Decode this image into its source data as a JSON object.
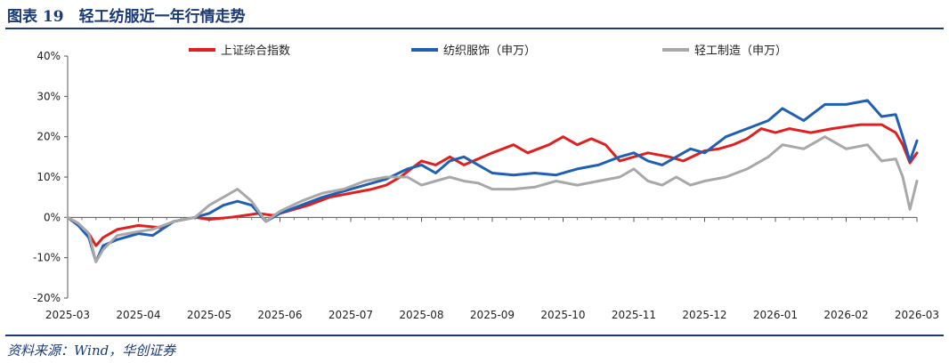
{
  "header": {
    "title": "图表 19　轻工纺服近一年行情走势"
  },
  "footer": {
    "source": "资料来源：Wind，华创证券"
  },
  "colors": {
    "title": "#1a3a7a",
    "series": [
      "#e02020",
      "#1f5fb4",
      "#a8a8a8"
    ]
  },
  "chart_data": {
    "type": "line",
    "title": "",
    "xlabel": "",
    "ylabel": "",
    "x_ticks": [
      "2025-03",
      "2025-04",
      "2025-05",
      "2025-06",
      "2025-07",
      "2025-08",
      "2025-09",
      "2025-10",
      "2025-11",
      "2025-12",
      "2026-01",
      "2026-02",
      "2026-03"
    ],
    "y_ticks": [
      "-20%",
      "-10%",
      "0%",
      "10%",
      "20%",
      "30%",
      "40%"
    ],
    "ylim": [
      -20,
      40
    ],
    "legend_position": "top",
    "grid": false,
    "series": [
      {
        "name": "上证综合指数",
        "color": "#e02020",
        "points": [
          [
            0,
            0
          ],
          [
            0.15,
            -1.5
          ],
          [
            0.3,
            -4
          ],
          [
            0.4,
            -7
          ],
          [
            0.5,
            -5
          ],
          [
            0.7,
            -3
          ],
          [
            1.0,
            -2
          ],
          [
            1.3,
            -2.5
          ],
          [
            1.5,
            -1
          ],
          [
            1.8,
            0
          ],
          [
            2.0,
            -0.5
          ],
          [
            2.3,
            0
          ],
          [
            2.5,
            0.5
          ],
          [
            2.7,
            1
          ],
          [
            2.9,
            0.5
          ],
          [
            3.1,
            1.5
          ],
          [
            3.4,
            3
          ],
          [
            3.7,
            5
          ],
          [
            4.0,
            6
          ],
          [
            4.3,
            7
          ],
          [
            4.5,
            8
          ],
          [
            4.7,
            10
          ],
          [
            5.0,
            14
          ],
          [
            5.2,
            13
          ],
          [
            5.4,
            15
          ],
          [
            5.6,
            13
          ],
          [
            5.8,
            14.5
          ],
          [
            6.0,
            16
          ],
          [
            6.3,
            18
          ],
          [
            6.5,
            16
          ],
          [
            6.8,
            18
          ],
          [
            7.0,
            20
          ],
          [
            7.2,
            18
          ],
          [
            7.4,
            19.5
          ],
          [
            7.6,
            18
          ],
          [
            7.8,
            14
          ],
          [
            8.0,
            15
          ],
          [
            8.2,
            16
          ],
          [
            8.5,
            15
          ],
          [
            8.7,
            14
          ],
          [
            9.0,
            16.5
          ],
          [
            9.2,
            17
          ],
          [
            9.4,
            18
          ],
          [
            9.6,
            19.5
          ],
          [
            9.8,
            22
          ],
          [
            10.0,
            21
          ],
          [
            10.2,
            22
          ],
          [
            10.5,
            21
          ],
          [
            10.8,
            22
          ],
          [
            11.0,
            22.5
          ],
          [
            11.2,
            23
          ],
          [
            11.5,
            23
          ],
          [
            11.7,
            21
          ],
          [
            11.8,
            18
          ],
          [
            11.9,
            13.5
          ],
          [
            12.0,
            16
          ]
        ]
      },
      {
        "name": "纺织服饰（申万）",
        "color": "#1f5fb4",
        "points": [
          [
            0,
            0
          ],
          [
            0.15,
            -2
          ],
          [
            0.3,
            -5
          ],
          [
            0.4,
            -11
          ],
          [
            0.5,
            -7
          ],
          [
            0.7,
            -5.5
          ],
          [
            1.0,
            -4
          ],
          [
            1.2,
            -4.5
          ],
          [
            1.5,
            -1
          ],
          [
            1.8,
            0
          ],
          [
            2.0,
            1
          ],
          [
            2.2,
            3
          ],
          [
            2.4,
            4
          ],
          [
            2.6,
            3
          ],
          [
            2.8,
            -1
          ],
          [
            3.0,
            1
          ],
          [
            3.3,
            3
          ],
          [
            3.6,
            5
          ],
          [
            3.9,
            6.5
          ],
          [
            4.2,
            8
          ],
          [
            4.5,
            9.5
          ],
          [
            4.8,
            12
          ],
          [
            5.0,
            13
          ],
          [
            5.2,
            11
          ],
          [
            5.4,
            14
          ],
          [
            5.6,
            15
          ],
          [
            5.8,
            13
          ],
          [
            6.0,
            11
          ],
          [
            6.3,
            10.5
          ],
          [
            6.6,
            11
          ],
          [
            6.9,
            10.5
          ],
          [
            7.2,
            12
          ],
          [
            7.5,
            13
          ],
          [
            7.8,
            15
          ],
          [
            8.0,
            16
          ],
          [
            8.2,
            14
          ],
          [
            8.4,
            13
          ],
          [
            8.6,
            15
          ],
          [
            8.8,
            17
          ],
          [
            9.0,
            16
          ],
          [
            9.3,
            20
          ],
          [
            9.6,
            22
          ],
          [
            9.9,
            24
          ],
          [
            10.1,
            27
          ],
          [
            10.4,
            24
          ],
          [
            10.7,
            28
          ],
          [
            11.0,
            28
          ],
          [
            11.3,
            29
          ],
          [
            11.5,
            25
          ],
          [
            11.7,
            25.5
          ],
          [
            11.8,
            20
          ],
          [
            11.9,
            14
          ],
          [
            12.0,
            19
          ]
        ]
      },
      {
        "name": "轻工制造（申万）",
        "color": "#a8a8a8",
        "points": [
          [
            0,
            0
          ],
          [
            0.15,
            -1.5
          ],
          [
            0.3,
            -4
          ],
          [
            0.4,
            -11
          ],
          [
            0.5,
            -8
          ],
          [
            0.7,
            -4.5
          ],
          [
            1.0,
            -3.5
          ],
          [
            1.2,
            -3
          ],
          [
            1.5,
            -1
          ],
          [
            1.8,
            0
          ],
          [
            2.0,
            3
          ],
          [
            2.2,
            5
          ],
          [
            2.4,
            7
          ],
          [
            2.6,
            4
          ],
          [
            2.8,
            -1
          ],
          [
            3.0,
            1.5
          ],
          [
            3.3,
            4
          ],
          [
            3.6,
            6
          ],
          [
            3.9,
            7
          ],
          [
            4.2,
            9
          ],
          [
            4.5,
            10
          ],
          [
            4.8,
            10
          ],
          [
            5.0,
            8
          ],
          [
            5.2,
            9
          ],
          [
            5.4,
            10
          ],
          [
            5.6,
            9
          ],
          [
            5.8,
            8.5
          ],
          [
            6.0,
            7
          ],
          [
            6.3,
            7
          ],
          [
            6.6,
            7.5
          ],
          [
            6.9,
            9
          ],
          [
            7.2,
            8
          ],
          [
            7.5,
            9
          ],
          [
            7.8,
            10
          ],
          [
            8.0,
            12
          ],
          [
            8.2,
            9
          ],
          [
            8.4,
            8
          ],
          [
            8.6,
            10
          ],
          [
            8.8,
            8
          ],
          [
            9.0,
            9
          ],
          [
            9.3,
            10
          ],
          [
            9.6,
            12
          ],
          [
            9.9,
            15
          ],
          [
            10.1,
            18
          ],
          [
            10.4,
            17
          ],
          [
            10.7,
            20
          ],
          [
            11.0,
            17
          ],
          [
            11.3,
            18
          ],
          [
            11.5,
            14
          ],
          [
            11.7,
            14.5
          ],
          [
            11.8,
            10
          ],
          [
            11.9,
            2
          ],
          [
            12.0,
            9
          ]
        ]
      }
    ]
  }
}
